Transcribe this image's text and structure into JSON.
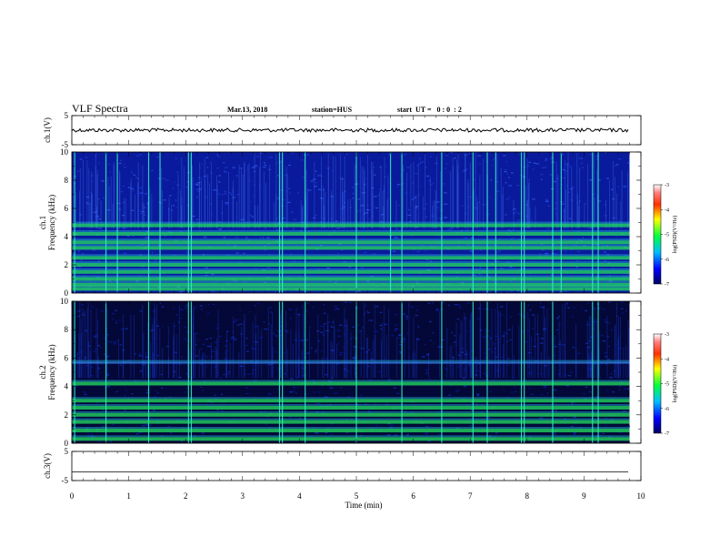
{
  "header": {
    "title": "VLF Spectra",
    "date": "Mar.13, 2018",
    "station": "station=HUS",
    "start": "start  UT =   0 : 0  : 2"
  },
  "chart_data": [
    {
      "type": "line",
      "name": "ch1-waveform",
      "ylabel": "ch.1(V)",
      "ylim": [
        -5,
        5
      ],
      "yticks": [
        "5",
        "-5"
      ],
      "xlim": [
        0,
        10
      ],
      "x": [
        0,
        9.8
      ],
      "y": [
        0,
        0
      ],
      "grid": false
    },
    {
      "type": "heatmap",
      "name": "ch1-spectrogram",
      "ylabel": "ch.1\nFrequency  (kHz)",
      "ylim": [
        0,
        10
      ],
      "yticks": [
        "0",
        "2",
        "4",
        "6",
        "8",
        "10"
      ],
      "xlim": [
        0,
        10
      ],
      "data_xmax": 9.8,
      "colorbar": {
        "label": "log(PSD)(V²/Hz)",
        "range": [
          -7,
          -3
        ],
        "ticks": [
          "-3",
          "-4",
          "-5",
          "-6",
          "-7"
        ]
      },
      "bands_khz": [
        0.3,
        0.6,
        1.0,
        1.5,
        2.0,
        2.5,
        3.2,
        3.6,
        4.2,
        4.8
      ],
      "spikes_min": [
        0.05,
        0.6,
        0.8,
        1.35,
        1.55,
        2.05,
        2.1,
        3.65,
        3.7,
        4.1,
        5.0,
        5.6,
        5.8,
        6.5,
        7.05,
        7.3,
        7.45,
        7.9,
        7.95,
        8.45,
        8.6,
        9.15,
        9.25
      ]
    },
    {
      "type": "heatmap",
      "name": "ch2-spectrogram",
      "ylabel": "ch.2\nFrequency  (kHz)",
      "ylim": [
        0,
        10
      ],
      "yticks": [
        "0",
        "2",
        "4",
        "6",
        "8",
        "10"
      ],
      "xlim": [
        0,
        10
      ],
      "data_xmax": 9.8,
      "colorbar": {
        "label": "log(PSD)(V²/Hz)",
        "range": [
          -7,
          -3
        ],
        "ticks": [
          "-3",
          "-4",
          "-5",
          "-6",
          "-7"
        ]
      },
      "bands_khz": [
        0.3,
        0.9,
        1.5,
        2.0,
        2.5,
        3.0,
        4.2,
        5.6
      ],
      "spikes_min": [
        0.05,
        0.6,
        1.35,
        2.05,
        2.1,
        3.65,
        3.7,
        4.1,
        5.0,
        5.8,
        6.5,
        7.05,
        7.3,
        7.9,
        7.95,
        8.45,
        9.15,
        9.25
      ]
    },
    {
      "type": "line",
      "name": "ch3-waveform",
      "ylabel": "ch.3(V)",
      "ylim": [
        -5,
        5
      ],
      "yticks": [
        "5",
        "-5"
      ],
      "xlim": [
        0,
        10
      ],
      "x": [
        0,
        9.8
      ],
      "y": [
        -2,
        -2
      ],
      "grid": false
    }
  ],
  "xaxis": {
    "label": "Time  (min)",
    "ticks": [
      "0",
      "1",
      "2",
      "3",
      "4",
      "5",
      "6",
      "7",
      "8",
      "9",
      "10"
    ]
  },
  "colors": {
    "spectrogram_bg": "#0a1a9c",
    "band": "#22e060",
    "spike": "#30f0c0",
    "ch2_bg": "#040838"
  }
}
